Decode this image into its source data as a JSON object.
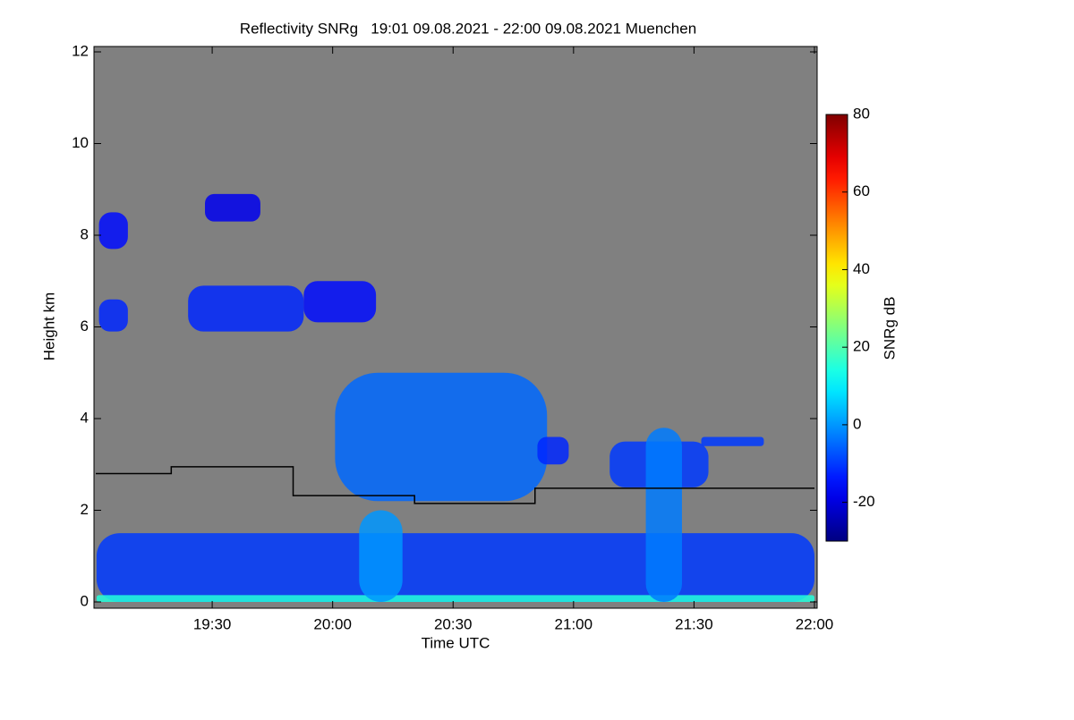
{
  "chart_data": {
    "type": "heatmap",
    "title": "Reflectivity SNRg   19:01 09.08.2021 - 22:00 09.08.2021 Muenchen",
    "x_label": "Time UTC",
    "y_label": "Height km",
    "xlim": [
      19.0167,
      22.0
    ],
    "xticks": [
      {
        "value": 19.5,
        "label": "19:30"
      },
      {
        "value": 20.0,
        "label": "20:00"
      },
      {
        "value": 20.5,
        "label": "20:30"
      },
      {
        "value": 21.0,
        "label": "21:00"
      },
      {
        "value": 21.5,
        "label": "21:30"
      },
      {
        "value": 22.0,
        "label": "22:00"
      }
    ],
    "ylim": [
      0,
      12
    ],
    "yticks": [
      0,
      2,
      4,
      6,
      8,
      10,
      12
    ],
    "background_color": "#808080",
    "colorbar": {
      "label": "SNRg dB",
      "clim": [
        -30,
        80
      ],
      "ticks": [
        -20,
        0,
        20,
        40,
        60,
        80
      ],
      "colormap": "jet"
    },
    "echoes": [
      {
        "x": [
          19.02,
          22.0
        ],
        "y": [
          0.0,
          1.5
        ],
        "z": -10
      },
      {
        "x": [
          19.02,
          22.0
        ],
        "y": [
          0.0,
          0.15
        ],
        "z": 15
      },
      {
        "x": [
          19.03,
          19.15
        ],
        "y": [
          7.7,
          8.5
        ],
        "z": -15
      },
      {
        "x": [
          19.03,
          19.15
        ],
        "y": [
          5.9,
          6.6
        ],
        "z": -12
      },
      {
        "x": [
          19.47,
          19.7
        ],
        "y": [
          8.3,
          8.9
        ],
        "z": -18
      },
      {
        "x": [
          19.4,
          19.88
        ],
        "y": [
          5.9,
          6.9
        ],
        "z": -12
      },
      {
        "x": [
          19.88,
          20.18
        ],
        "y": [
          6.1,
          7.0
        ],
        "z": -15
      },
      {
        "x": [
          20.01,
          20.89
        ],
        "y": [
          2.2,
          5.0
        ],
        "z": -5
      },
      {
        "x": [
          20.85,
          20.98
        ],
        "y": [
          3.0,
          3.6
        ],
        "z": -12
      },
      {
        "x": [
          21.15,
          21.56
        ],
        "y": [
          2.5,
          3.5
        ],
        "z": -10
      },
      {
        "x": [
          21.53,
          21.79
        ],
        "y": [
          3.4,
          3.6
        ],
        "z": -10
      },
      {
        "x": [
          20.11,
          20.29
        ],
        "y": [
          0.0,
          2.0
        ],
        "z": 0
      },
      {
        "x": [
          21.3,
          21.45
        ],
        "y": [
          0.0,
          3.8
        ],
        "z": -3
      }
    ],
    "line": {
      "color": "#000000",
      "x": [
        19.0167,
        19.33,
        19.33,
        19.836,
        19.836,
        20.34,
        20.34,
        20.84,
        20.84,
        22.0
      ],
      "values": [
        2.8,
        2.8,
        2.95,
        2.95,
        2.32,
        2.32,
        2.15,
        2.15,
        2.48,
        2.48
      ]
    }
  }
}
